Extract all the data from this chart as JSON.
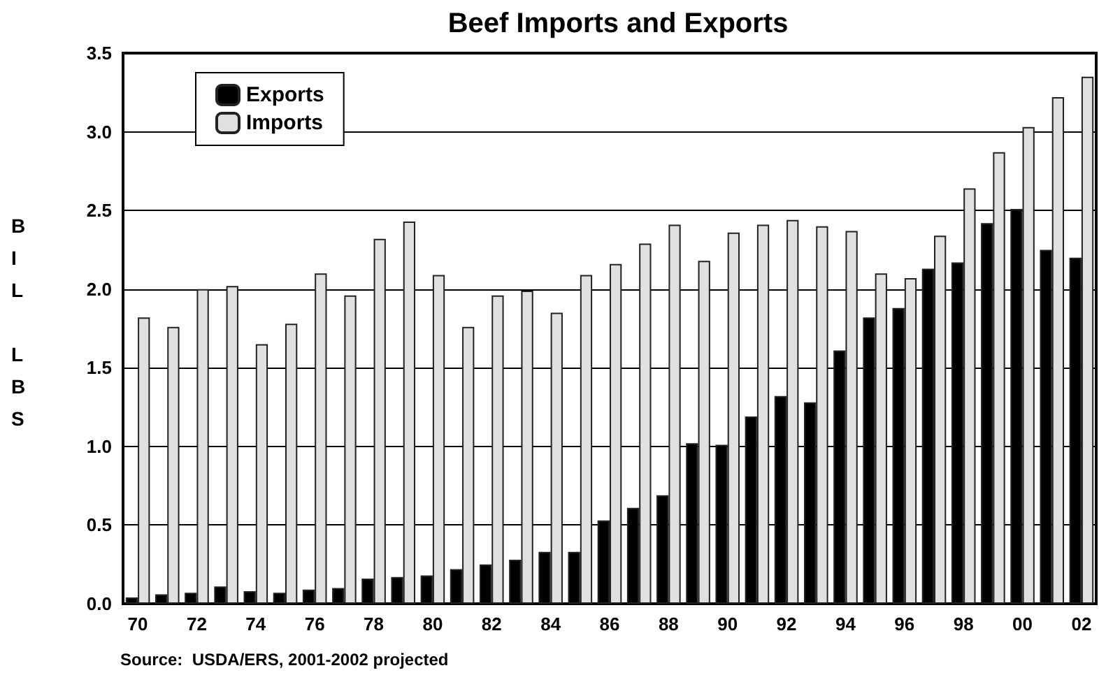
{
  "chart_data": {
    "type": "bar",
    "title": "Beef Imports and Exports",
    "ylabel": "BIL LBS",
    "annotations": [
      "Source:  USDA/ERS, 2001-2002 projected"
    ],
    "categories": [
      "70",
      null,
      "72",
      null,
      "74",
      null,
      "76",
      null,
      "78",
      null,
      "80",
      null,
      "82",
      null,
      "84",
      null,
      "86",
      null,
      "88",
      null,
      "90",
      null,
      "92",
      null,
      "94",
      null,
      "96",
      null,
      "98",
      null,
      "00",
      null,
      "02"
    ],
    "series": [
      {
        "name": "Exports",
        "color": "#000000",
        "values": [
          0.04,
          0.06,
          0.07,
          0.11,
          0.08,
          0.07,
          0.09,
          0.1,
          0.16,
          0.17,
          0.18,
          0.22,
          0.25,
          0.28,
          0.33,
          0.33,
          0.53,
          0.61,
          0.69,
          1.02,
          1.01,
          1.19,
          1.32,
          1.28,
          1.61,
          1.82,
          1.88,
          2.13,
          2.17,
          2.42,
          2.51,
          2.25,
          2.2
        ]
      },
      {
        "name": "Imports",
        "color": "#e0e0e0",
        "values": [
          1.82,
          1.76,
          2.0,
          2.02,
          1.65,
          1.78,
          2.1,
          1.96,
          2.32,
          2.43,
          2.09,
          1.76,
          1.96,
          1.99,
          1.85,
          2.09,
          2.16,
          2.29,
          2.41,
          2.18,
          2.36,
          2.41,
          2.44,
          2.4,
          2.37,
          2.1,
          2.07,
          2.34,
          2.64,
          2.87,
          3.03,
          3.22,
          3.35
        ]
      }
    ],
    "ylim": [
      0,
      3.5
    ],
    "yticks": [
      {
        "value": 0,
        "label": "0.0"
      },
      {
        "value": 0.5,
        "label": "0.5"
      },
      {
        "value": 1,
        "label": "1.0"
      },
      {
        "value": 1.5,
        "label": "1.5"
      },
      {
        "value": 2,
        "label": "2.0"
      },
      {
        "value": 2.5,
        "label": "2.5"
      },
      {
        "value": 3,
        "label": "3.0"
      },
      {
        "value": 3.5,
        "label": "3.5"
      }
    ],
    "grid": "y",
    "legend": "top left"
  }
}
